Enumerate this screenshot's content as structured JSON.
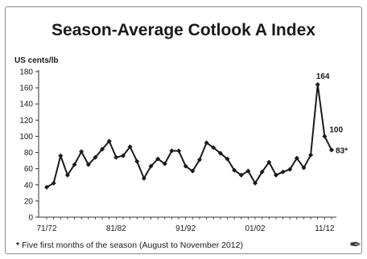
{
  "chart_data": {
    "type": "line",
    "title": "Season-Average Cotlook A Index",
    "ylabel": "US cents/lb",
    "xlabel": "",
    "ylim": [
      0,
      180
    ],
    "y_ticks": [
      0,
      20,
      40,
      60,
      80,
      100,
      120,
      140,
      160,
      180
    ],
    "x_tick_labels": [
      "71/72",
      "81/82",
      "91/92",
      "01/02",
      "11/12"
    ],
    "x_tick_indices": [
      0,
      10,
      20,
      30,
      40
    ],
    "grid": false,
    "series": [
      {
        "seasons": [
          "71/72",
          "72/73",
          "73/74",
          "74/75",
          "75/76",
          "76/77",
          "77/78",
          "78/79",
          "79/80",
          "80/81",
          "81/82",
          "82/83",
          "83/84",
          "84/85",
          "85/86",
          "86/87",
          "87/88",
          "88/89",
          "89/90",
          "90/91",
          "91/92",
          "92/93",
          "93/94",
          "94/95",
          "95/96",
          "96/97",
          "97/98",
          "98/99",
          "99/00",
          "00/01",
          "01/02",
          "02/03",
          "03/04",
          "04/05",
          "05/06",
          "06/07",
          "07/08",
          "08/09",
          "09/10",
          "10/11",
          "11/12",
          "12/13"
        ],
        "values": [
          37,
          42,
          76,
          52,
          65,
          81,
          65,
          74,
          84,
          94,
          74,
          76,
          87,
          69,
          48,
          63,
          72,
          66,
          82,
          82,
          63,
          57,
          71,
          92,
          86,
          79,
          72,
          58,
          52,
          57,
          42,
          56,
          68,
          52,
          56,
          59,
          73,
          61,
          77,
          164,
          100,
          83
        ],
        "color": "#1a1a1a"
      }
    ],
    "annotations": [
      "164",
      "100",
      "83*"
    ]
  },
  "footnote": {
    "marker": "*",
    "text": "Five first months of the season (August to November 2012)"
  }
}
